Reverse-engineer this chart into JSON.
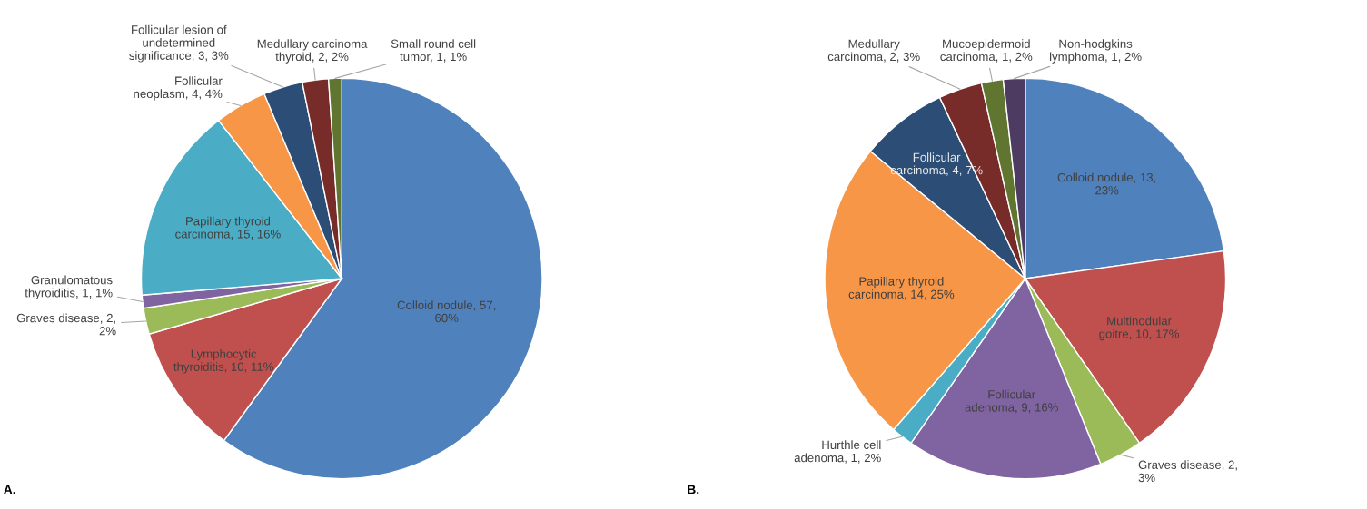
{
  "chart_data": [
    {
      "type": "pie",
      "categories": [
        "Colloid nodule",
        "Lymphocytic thyroiditis",
        "Graves disease",
        "Granulomatous thyroiditis",
        "Papillary thyroid carcinoma",
        "Follicular neoplasm",
        "Follicular lesion of undetermined significance",
        "Medullary carcinoma thyroid",
        "Small round cell tumor"
      ],
      "values": [
        57,
        10,
        2,
        1,
        15,
        4,
        3,
        2,
        1
      ],
      "value_labels": [
        "57, 60%",
        "10, 11%",
        "2, 2%",
        "1, 1%",
        "15, 16%",
        "4, 4%",
        "3, 3%",
        "2, 2%",
        "1, 1%"
      ],
      "colors": [
        "#4f81bd",
        "#c0504d",
        "#9bbb59",
        "#8064a2",
        "#4bacc6",
        "#f79646",
        "#2c4d75",
        "#772c2a",
        "#5f7530"
      ],
      "annotations": [
        "A."
      ]
    },
    {
      "type": "pie",
      "categories": [
        "Colloid nodule",
        "Multinodular goitre",
        "Graves disease",
        "Follicular adenoma",
        "Hurthle cell adenoma",
        "Papillary thyroid carcinoma",
        "Follicular carcinoma",
        "Medullary carcinoma",
        "Mucoepidermoid carcinoma",
        "Non-hodgkins lymphoma"
      ],
      "values": [
        13,
        10,
        2,
        9,
        1,
        14,
        4,
        2,
        1,
        1
      ],
      "value_labels": [
        "13, 23%",
        "10, 17%",
        "2, 3%",
        "9, 16%",
        "1, 2%",
        "14, 25%",
        "4, 7%",
        "2, 3%",
        "1, 2%",
        "1, 2%"
      ],
      "colors": [
        "#4f81bd",
        "#c0504d",
        "#9bbb59",
        "#8064a2",
        "#4bacc6",
        "#f79646",
        "#2c4d75",
        "#772c2a",
        "#5f7530",
        "#4d3b62"
      ],
      "annotations": [
        "B."
      ]
    }
  ]
}
